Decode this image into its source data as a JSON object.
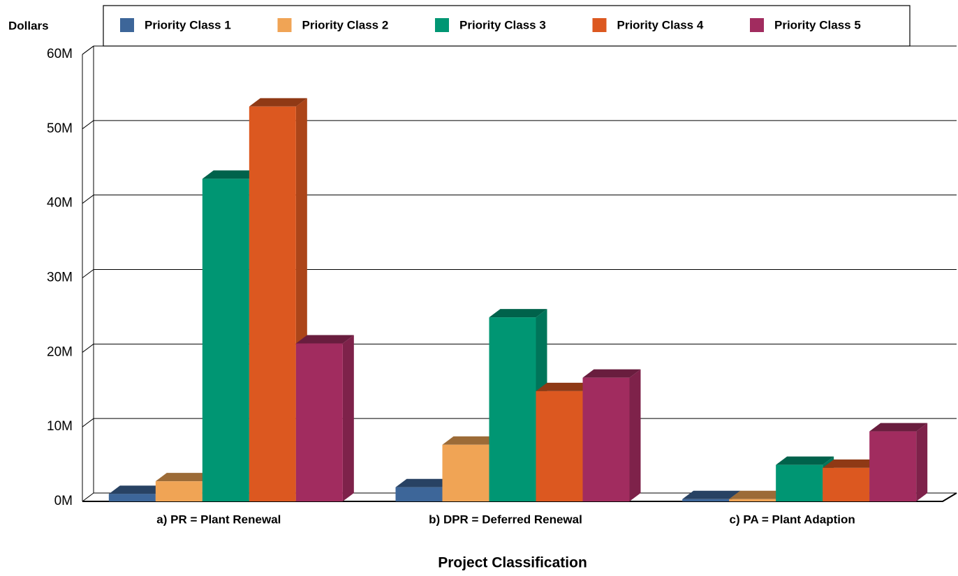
{
  "chart_data": {
    "type": "bar3d",
    "y_axis_label": "Dollars",
    "x_axis_label": "Project Classification",
    "categories": [
      "a) PR = Plant Renewal",
      "b) DPR = Deferred Renewal",
      "c) PA = Plant Adaption"
    ],
    "series": [
      {
        "name": "Priority Class 1",
        "color": "#3d6699",
        "values": [
          1000000,
          1900000,
          300000
        ]
      },
      {
        "name": "Priority Class 2",
        "color": "#f0a455",
        "values": [
          2700000,
          7600000,
          300000
        ]
      },
      {
        "name": "Priority Class 3",
        "color": "#009673",
        "values": [
          43300000,
          24700000,
          4900000
        ]
      },
      {
        "name": "Priority Class 4",
        "color": "#dc5820",
        "values": [
          53000000,
          14800000,
          4500000
        ]
      },
      {
        "name": "Priority Class 5",
        "color": "#a12c5f",
        "values": [
          21200000,
          16600000,
          9400000
        ]
      }
    ],
    "ylim": [
      0,
      60000000
    ],
    "yticks": [
      {
        "value": 0,
        "label": "0M"
      },
      {
        "value": 10000000,
        "label": "10M"
      },
      {
        "value": 20000000,
        "label": "20M"
      },
      {
        "value": 30000000,
        "label": "30M"
      },
      {
        "value": 40000000,
        "label": "40M"
      },
      {
        "value": 50000000,
        "label": "50M"
      },
      {
        "value": 60000000,
        "label": "60M"
      }
    ],
    "grid": true,
    "legend": "top"
  }
}
